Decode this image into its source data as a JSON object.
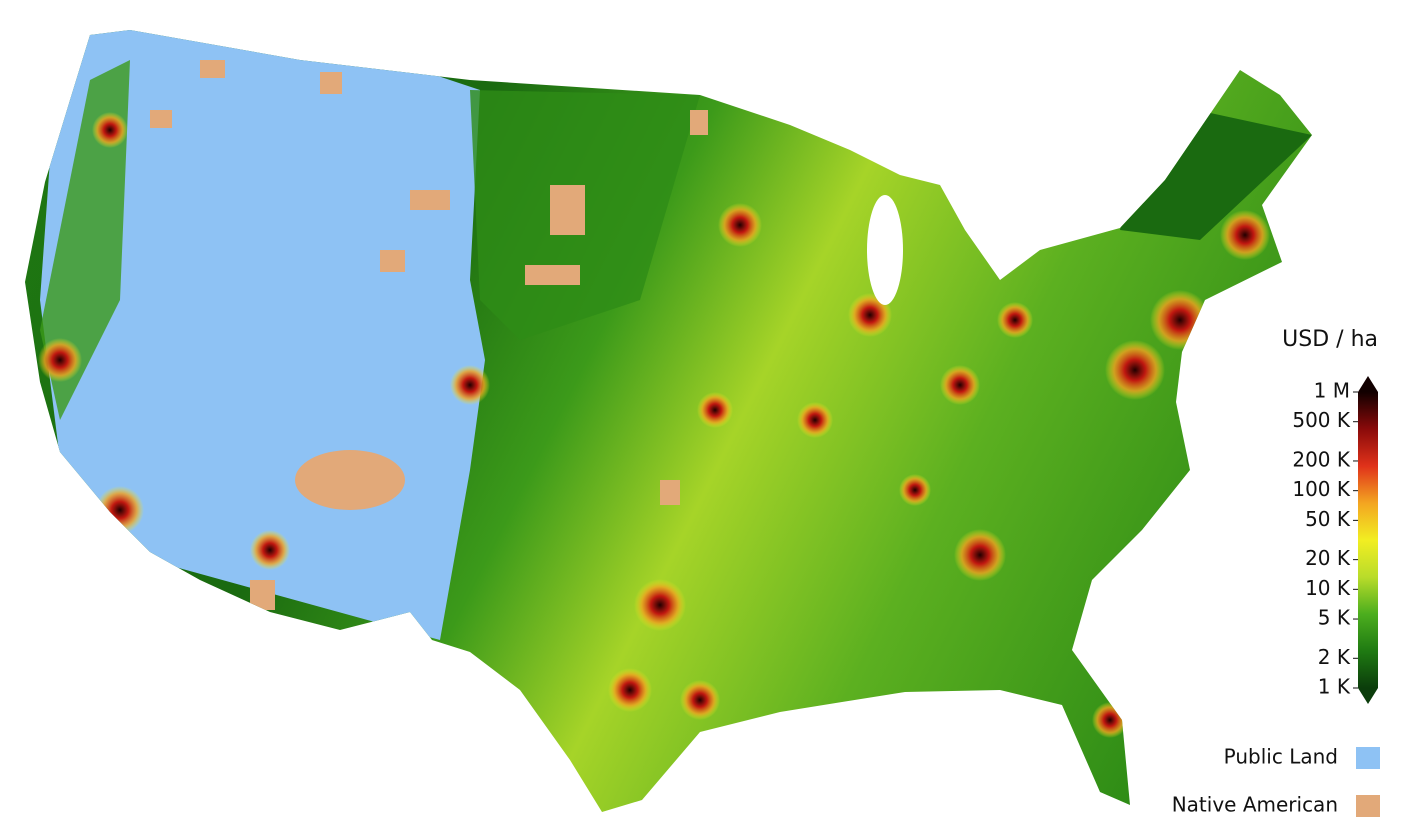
{
  "map": {
    "colorbar": {
      "title": "USD / ha",
      "scale": "log",
      "lim": [
        1000,
        1000000
      ],
      "ticks": [
        {
          "value": 1000,
          "label": "1 K"
        },
        {
          "value": 2000,
          "label": "2 K"
        },
        {
          "value": 5000,
          "label": "5 K"
        },
        {
          "value": 10000,
          "label": "10 K"
        },
        {
          "value": 20000,
          "label": "20 K"
        },
        {
          "value": 50000,
          "label": "50 K"
        },
        {
          "value": 100000,
          "label": "100 K"
        },
        {
          "value": 200000,
          "label": "200 K"
        },
        {
          "value": 500000,
          "label": "500 K"
        },
        {
          "value": 1000000,
          "label": "1 M"
        }
      ],
      "colors": [
        "#0b3d0b",
        "#1f7a12",
        "#4cae1e",
        "#b9dc2a",
        "#f2ee22",
        "#f3a521",
        "#e0321a",
        "#8a0a0a",
        "#120000"
      ]
    },
    "legend": [
      {
        "label": "Public Land",
        "color": "#8ec2f4"
      },
      {
        "label": "Native American",
        "color": "#e2a979"
      }
    ]
  }
}
